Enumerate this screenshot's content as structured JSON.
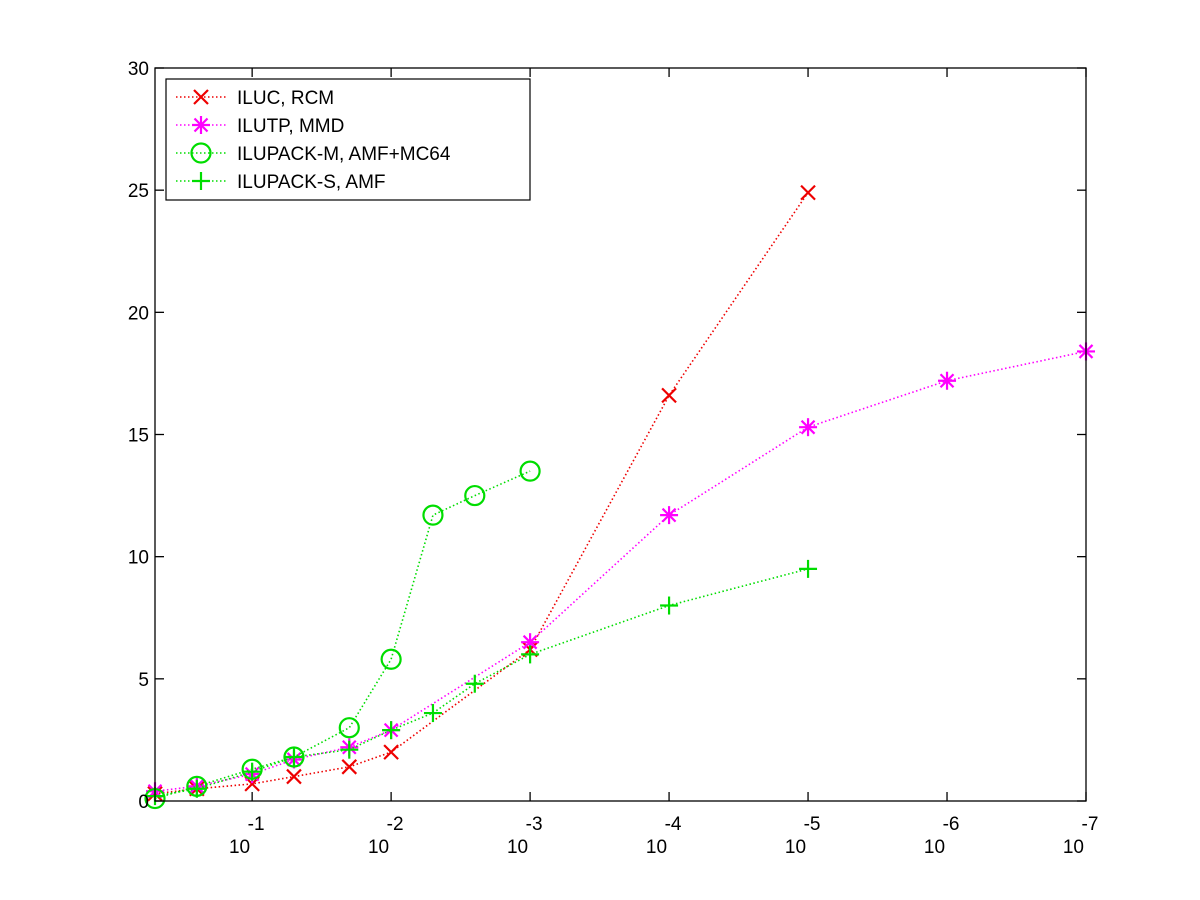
{
  "chart_data": {
    "type": "line",
    "title": "",
    "xlabel": "",
    "ylabel": "",
    "x_scale": "log-reversed",
    "xlim": [
      0.5,
      1e-07
    ],
    "ylim": [
      0,
      30
    ],
    "x_ticks": [
      {
        "value": 0.1,
        "base": "10",
        "exponent": "-1"
      },
      {
        "value": 0.01,
        "base": "10",
        "exponent": "-2"
      },
      {
        "value": 0.001,
        "base": "10",
        "exponent": "-3"
      },
      {
        "value": 0.0001,
        "base": "10",
        "exponent": "-4"
      },
      {
        "value": 1e-05,
        "base": "10",
        "exponent": "-5"
      },
      {
        "value": 1e-06,
        "base": "10",
        "exponent": "-6"
      },
      {
        "value": 1e-07,
        "base": "10",
        "exponent": "-7"
      }
    ],
    "y_ticks": [
      "0",
      "5",
      "10",
      "15",
      "20",
      "25",
      "30"
    ],
    "grid": false,
    "legend_position": "top-left",
    "series": [
      {
        "name": "ILUC, RCM",
        "color": "#ee0000",
        "marker": "x",
        "x": [
          0.5,
          0.25,
          0.1,
          0.05,
          0.02,
          0.01,
          0.001,
          0.0001,
          1e-05
        ],
        "y": [
          0.3,
          0.5,
          0.7,
          1.0,
          1.4,
          2.0,
          6.2,
          16.6,
          24.9
        ]
      },
      {
        "name": "ILUTP, MMD",
        "color": "#ff00ff",
        "marker": "asterisk",
        "x": [
          0.5,
          0.25,
          0.1,
          0.05,
          0.02,
          0.01,
          0.001,
          0.0001,
          1e-05,
          1e-06,
          1e-07
        ],
        "y": [
          0.4,
          0.6,
          1.1,
          1.7,
          2.2,
          2.9,
          6.5,
          11.7,
          15.3,
          17.2,
          18.4
        ]
      },
      {
        "name": "ILUPACK-M, AMF+MC64",
        "color": "#00dd00",
        "marker": "circle",
        "x": [
          0.5,
          0.25,
          0.1,
          0.05,
          0.02,
          0.01,
          0.005,
          0.0025,
          0.001
        ],
        "y": [
          0.1,
          0.6,
          1.3,
          1.8,
          3.0,
          5.8,
          11.7,
          12.5,
          13.5
        ]
      },
      {
        "name": "ILUPACK-S, AMF",
        "color": "#00dd00",
        "marker": "plus",
        "x": [
          0.5,
          0.25,
          0.1,
          0.05,
          0.02,
          0.01,
          0.005,
          0.0025,
          0.001,
          0.0001,
          1e-05
        ],
        "y": [
          0.2,
          0.5,
          1.2,
          1.8,
          2.1,
          2.9,
          3.6,
          4.8,
          6.0,
          8.0,
          9.5
        ]
      }
    ]
  }
}
